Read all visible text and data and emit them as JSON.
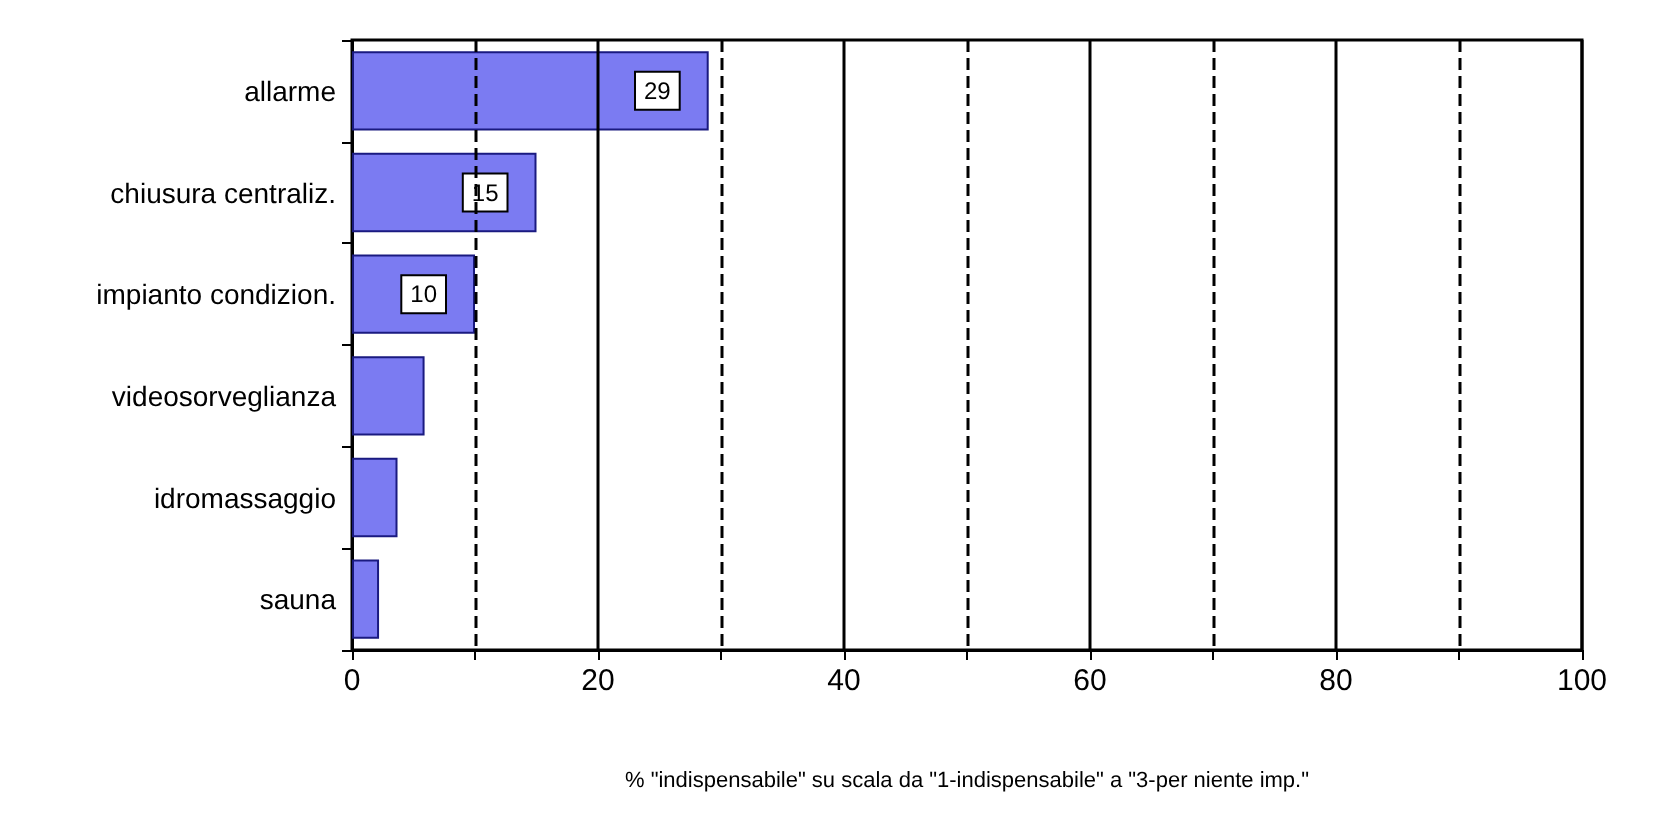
{
  "chart_data": {
    "type": "bar",
    "orientation": "horizontal",
    "xlabel": "% \"indispensabile\" su scala da \"1-indispensabile\" a \"3-per niente imp.\"",
    "categories": [
      "allarme",
      "chiusura centraliz.",
      "impianto condizion.",
      "videosorveglianza",
      "idromassaggio",
      "sauna"
    ],
    "values": [
      29,
      15,
      10,
      5.9,
      3.7,
      2.2
    ],
    "value_labels": [
      "29",
      "15",
      "10",
      null,
      null,
      null
    ],
    "color": "#7b7bf2",
    "xlim": [
      0,
      100
    ],
    "xticks": [
      0,
      {
        "value": 10,
        "label": null
      },
      20,
      {
        "value": 30,
        "label": null
      },
      40,
      {
        "value": 50,
        "label": null
      },
      60,
      {
        "value": 70,
        "label": null
      },
      80,
      {
        "value": 90,
        "label": null
      },
      100
    ],
    "grid": "x"
  }
}
